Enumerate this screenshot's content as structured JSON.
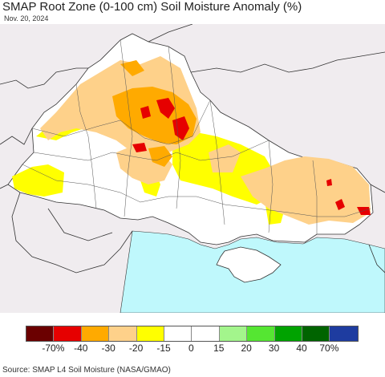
{
  "title": "SMAP Root Zone (0-100 cm) Soil Moisture Anomaly (%)",
  "date": "Nov. 20, 2024",
  "source": "Source: SMAP L4 Soil Moisture (NASA/GMAO)",
  "legend": {
    "colors": [
      "#6b0000",
      "#e60000",
      "#ffaa00",
      "#fed18a",
      "#ffff00",
      "#ffffff",
      "#ffffff",
      "#a3f58c",
      "#55e632",
      "#00a300",
      "#006400",
      "#1e3ca0"
    ],
    "labels": [
      "-70%",
      "-40",
      "-30",
      "-20",
      "-15",
      "0",
      "15",
      "20",
      "30",
      "40",
      "70%"
    ]
  },
  "map_colors": {
    "land_outside": "#f0ecef",
    "sea": "#bff8fc",
    "border": "#333333"
  }
}
